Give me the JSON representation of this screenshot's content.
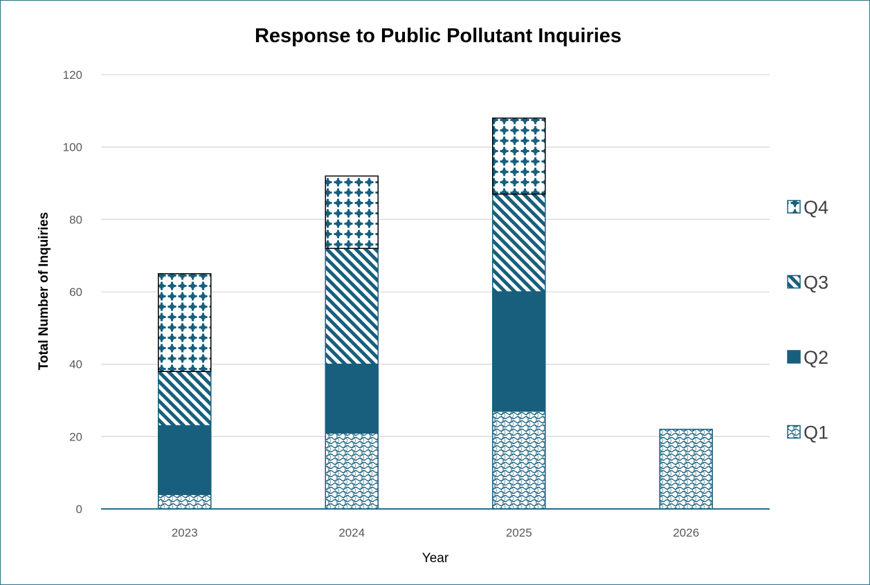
{
  "chart_data": {
    "type": "bar",
    "stacked": true,
    "title": "Response to Public Pollutant Inquiries",
    "xlabel": "Year",
    "ylabel": "Total Number of Inquiries",
    "categories": [
      "2023",
      "2024",
      "2025",
      "2026"
    ],
    "ylim": [
      0,
      120
    ],
    "yticks": [
      0,
      20,
      40,
      60,
      80,
      100,
      120
    ],
    "grid": true,
    "legend_position": "right",
    "series": [
      {
        "name": "Q1",
        "values": [
          4,
          21,
          27,
          22
        ],
        "pattern": "wave-crosshatch"
      },
      {
        "name": "Q2",
        "values": [
          19,
          19,
          33,
          null
        ],
        "pattern": "solid"
      },
      {
        "name": "Q3",
        "values": [
          15,
          32,
          27,
          null
        ],
        "pattern": "diagonal-stripes"
      },
      {
        "name": "Q4",
        "values": [
          27,
          20,
          21,
          null
        ],
        "pattern": "dotted-grid"
      }
    ],
    "colors": {
      "bar": "#185f7d",
      "grid": "#d9d9d9",
      "axis": "#1f6f8b"
    }
  }
}
